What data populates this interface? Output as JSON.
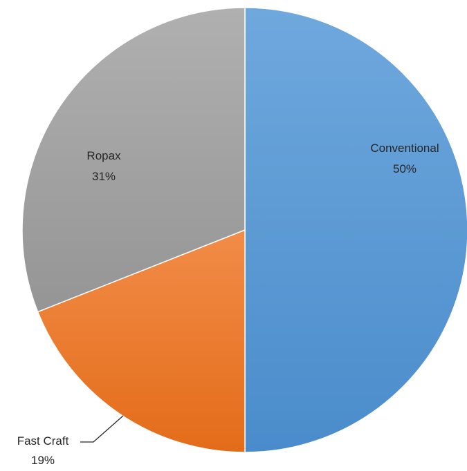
{
  "chart_data": {
    "type": "pie",
    "title": "",
    "start_angle_deg": 0,
    "direction": "clockwise",
    "slices": [
      {
        "name": "Conventional",
        "value": 50,
        "percent_label": "50%",
        "color": "#5B9BD5",
        "gradient": [
          "#6FA8DD",
          "#4A8CCB"
        ]
      },
      {
        "name": "Fast Craft",
        "value": 19,
        "percent_label": "19%",
        "color": "#ED7D31",
        "gradient": [
          "#F28C48",
          "#E36C19"
        ]
      },
      {
        "name": "Ropax",
        "value": 31,
        "percent_label": "31%",
        "color": "#A5A5A5",
        "gradient": [
          "#B0B0B0",
          "#959595"
        ]
      }
    ]
  }
}
